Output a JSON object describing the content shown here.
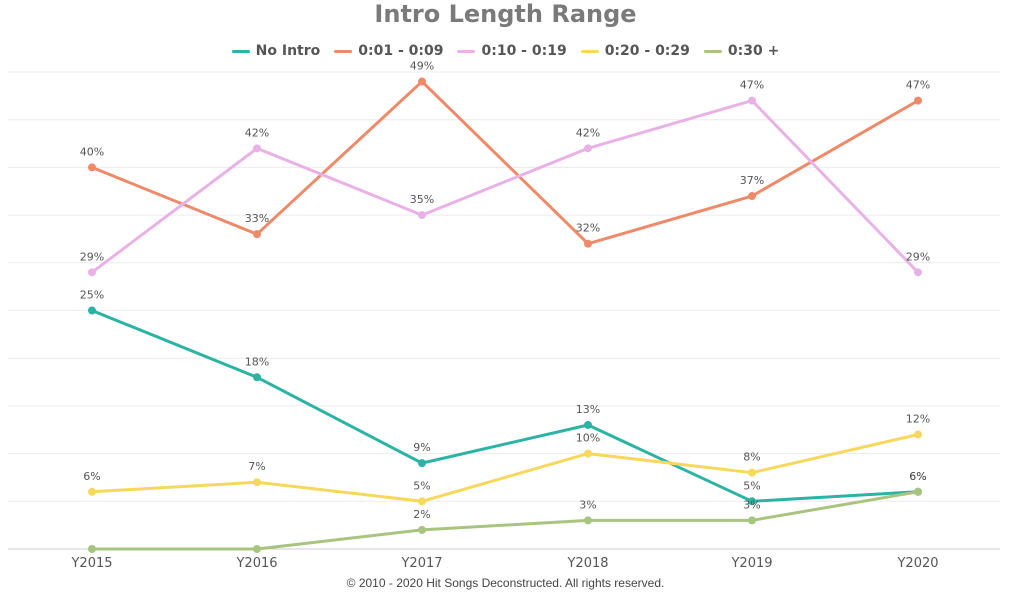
{
  "chart_data": {
    "type": "line",
    "title": "Intro Length Range",
    "categories": [
      "Y2015",
      "Y2016",
      "Y2017",
      "Y2018",
      "Y2019",
      "Y2020"
    ],
    "ylim": [
      0,
      50
    ],
    "grid": true,
    "legend_position": "top-center",
    "series": [
      {
        "name": "No Intro",
        "color": "#2bb3a3",
        "values": [
          25,
          18,
          9,
          13,
          5,
          6
        ],
        "labels": [
          "25%",
          "18%",
          "9%",
          "13%",
          "5%",
          "6%"
        ]
      },
      {
        "name": "0:01 - 0:09",
        "color": "#ee8a6a",
        "values": [
          40,
          33,
          49,
          32,
          37,
          47
        ],
        "labels": [
          "40%",
          "33%",
          "49%",
          "32%",
          "37%",
          "47%"
        ]
      },
      {
        "name": "0:10 - 0:19",
        "color": "#e8b2e6",
        "values": [
          29,
          42,
          35,
          42,
          47,
          29
        ],
        "labels": [
          "29%",
          "42%",
          "35%",
          "42%",
          "47%",
          "29%"
        ]
      },
      {
        "name": "0:20 - 0:29",
        "color": "#f5d85c",
        "values": [
          6,
          7,
          5,
          10,
          8,
          12
        ],
        "labels": [
          "6%",
          "7%",
          "5%",
          "10%",
          "8%",
          "12%"
        ]
      },
      {
        "name": "0:30 +",
        "color": "#a9c47f",
        "values": [
          0,
          0,
          2,
          3,
          3,
          6
        ],
        "labels": [
          "",
          "",
          "2%",
          "3%",
          "3%",
          "6%"
        ]
      }
    ]
  },
  "footer": "© 2010 - 2020 Hit Songs Deconstructed. All rights reserved."
}
